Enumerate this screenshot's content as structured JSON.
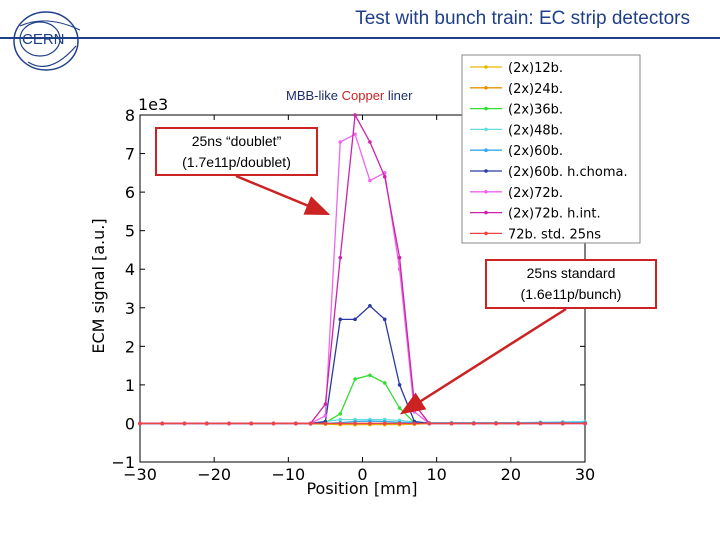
{
  "slide": {
    "title": "Test with bunch train: EC strip detectors",
    "subtitle_pre": "MBB-like ",
    "subtitle_highlight": "Copper",
    "subtitle_post": " liner",
    "logo_text": "CERN",
    "colors": {
      "header": "#1f3f8a",
      "callout_border": "#cc2222"
    }
  },
  "callouts": {
    "doublet": {
      "line1": "25ns “doublet”",
      "line2": "(1.7e11p/doublet)"
    },
    "standard": {
      "line1": "25ns standard",
      "line2": "(1.6e11p/bunch)"
    }
  },
  "chart_data": {
    "type": "line",
    "xlabel": "Position [mm]",
    "ylabel": "ECM signal [a.u.]",
    "y_multiplier": "1e3",
    "xlim": [
      -30,
      30
    ],
    "ylim": [
      -1,
      8
    ],
    "x_ticks": [
      "−30",
      "−20",
      "−10",
      "0",
      "10",
      "20",
      "30"
    ],
    "y_ticks": [
      "−1",
      "0",
      "1",
      "2",
      "3",
      "4",
      "5",
      "6",
      "7",
      "8"
    ],
    "x_tick_values": [
      -30,
      -20,
      -10,
      0,
      10,
      20,
      30
    ],
    "y_tick_values": [
      -1,
      0,
      1,
      2,
      3,
      4,
      5,
      6,
      7,
      8
    ],
    "legend_position": "top-right",
    "grid": false,
    "series": [
      {
        "name": "(2x)12b.",
        "color": "#e8b800",
        "x": [
          -30,
          -27,
          -24,
          -21,
          -18,
          -15,
          -12,
          -9,
          -7,
          -5,
          -3,
          -1,
          1,
          3,
          5,
          7,
          9,
          12,
          15,
          18,
          21,
          24,
          27,
          30
        ],
        "y": [
          0,
          0,
          0,
          0,
          0,
          0,
          0,
          0,
          -0.01,
          -0.02,
          -0.03,
          -0.03,
          -0.03,
          -0.03,
          -0.03,
          -0.02,
          0,
          0,
          0,
          0,
          0,
          0.01,
          0.01,
          0.01
        ]
      },
      {
        "name": "(2x)24b.",
        "color": "#e69000",
        "x": [
          -30,
          -27,
          -24,
          -21,
          -18,
          -15,
          -12,
          -9,
          -7,
          -5,
          -3,
          -1,
          1,
          3,
          5,
          7,
          9,
          12,
          15,
          18,
          21,
          24,
          27,
          30
        ],
        "y": [
          0,
          0,
          0,
          0,
          0,
          0,
          0,
          0,
          0,
          0,
          0,
          0,
          0,
          0,
          0,
          0,
          0,
          0,
          0,
          0,
          0,
          0,
          0.01,
          0.01
        ]
      },
      {
        "name": "(2x)36b.",
        "color": "#33dd33",
        "x": [
          -30,
          -27,
          -24,
          -21,
          -18,
          -15,
          -12,
          -9,
          -7,
          -5,
          -3,
          -1,
          1,
          3,
          5,
          7,
          9,
          12,
          15,
          18,
          21,
          24,
          27,
          30
        ],
        "y": [
          0,
          0,
          0,
          0,
          0,
          0,
          0,
          0,
          0,
          0.02,
          0.25,
          1.15,
          1.25,
          1.05,
          0.4,
          0.02,
          0,
          0,
          0,
          0,
          0,
          0.02,
          0.03,
          0.03
        ]
      },
      {
        "name": "(2x)48b.",
        "color": "#66dddd",
        "x": [
          -30,
          -27,
          -24,
          -21,
          -18,
          -15,
          -12,
          -9,
          -7,
          -5,
          -3,
          -1,
          1,
          3,
          5,
          7,
          9,
          12,
          15,
          18,
          21,
          24,
          27,
          30
        ],
        "y": [
          0,
          0,
          0,
          0,
          0,
          0,
          0,
          0,
          0,
          0.05,
          0.1,
          0.1,
          0.1,
          0.1,
          0.08,
          0.04,
          0.02,
          0.02,
          0.02,
          0.02,
          0.02,
          0.03,
          0.04,
          0.05
        ]
      },
      {
        "name": "(2x)60b.",
        "color": "#33aaee",
        "x": [
          -30,
          -27,
          -24,
          -21,
          -18,
          -15,
          -12,
          -9,
          -7,
          -5,
          -3,
          -1,
          1,
          3,
          5,
          7,
          9,
          12,
          15,
          18,
          21,
          24,
          27,
          30
        ],
        "y": [
          0,
          0,
          0,
          0,
          0,
          0,
          0,
          0,
          0,
          0,
          0.02,
          0.05,
          0.06,
          0.05,
          0.03,
          0.02,
          0.01,
          0.01,
          0.01,
          0.01,
          0.01,
          0.02,
          0.02,
          0.02
        ]
      },
      {
        "name": "(2x)60b. h.choma.",
        "color": "#2a3aa0",
        "x": [
          -30,
          -27,
          -24,
          -21,
          -18,
          -15,
          -12,
          -9,
          -7,
          -5,
          -3,
          -1,
          1,
          3,
          5,
          7,
          9,
          12,
          15,
          18,
          21,
          24,
          27,
          30
        ],
        "y": [
          0,
          0,
          0,
          0,
          0,
          0,
          0,
          0,
          0,
          0.05,
          2.7,
          2.7,
          3.05,
          2.7,
          1.0,
          0.05,
          0,
          0,
          0,
          0,
          0,
          0,
          0,
          0
        ]
      },
      {
        "name": "(2x)72b.",
        "color": "#ee66ee",
        "x": [
          -30,
          -27,
          -24,
          -21,
          -18,
          -15,
          -12,
          -9,
          -7,
          -5,
          -3,
          -1,
          1,
          3,
          5,
          7,
          9,
          12,
          15,
          18,
          21,
          24,
          27,
          30
        ],
        "y": [
          0,
          0,
          0,
          0,
          0,
          0,
          0,
          0,
          0,
          0.2,
          7.3,
          7.5,
          6.3,
          6.5,
          4.0,
          0.3,
          0,
          0,
          0,
          0,
          0,
          0,
          0,
          0
        ]
      },
      {
        "name": "(2x)72b. h.int.",
        "color": "#cc22aa",
        "x": [
          -30,
          -27,
          -24,
          -21,
          -18,
          -15,
          -12,
          -9,
          -7,
          -5,
          -3,
          -1,
          1,
          3,
          5,
          7,
          9,
          12,
          15,
          18,
          21,
          24,
          27,
          30
        ],
        "y": [
          0,
          0,
          0,
          0,
          0,
          0,
          0,
          0,
          0,
          0.5,
          4.3,
          8.0,
          7.3,
          6.4,
          4.3,
          0.5,
          0,
          0,
          0,
          0,
          0,
          0,
          0,
          0
        ]
      },
      {
        "name": "72b. std. 25ns",
        "color": "#ee4444",
        "x": [
          -30,
          -27,
          -24,
          -21,
          -18,
          -15,
          -12,
          -9,
          -7,
          -5,
          -3,
          -1,
          1,
          3,
          5,
          7,
          9,
          12,
          15,
          18,
          21,
          24,
          27,
          30
        ],
        "y": [
          0,
          0,
          0,
          0,
          0,
          0,
          0,
          0,
          0,
          0,
          0,
          0,
          0,
          0,
          0,
          0,
          0,
          0,
          0,
          0,
          0,
          0,
          0,
          0
        ]
      }
    ]
  }
}
